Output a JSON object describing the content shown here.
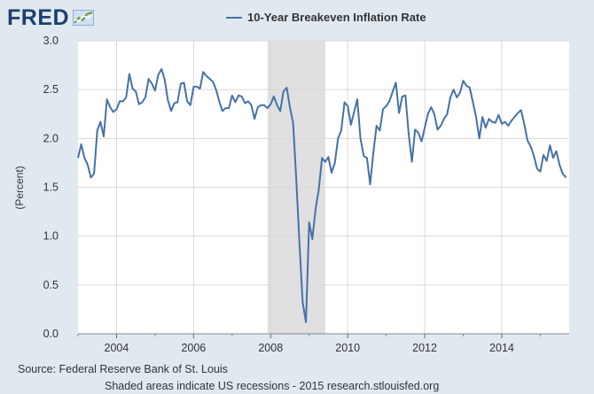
{
  "brand": {
    "name": "FRED"
  },
  "footer": {
    "source": "Source: Federal Reserve Bank of St. Louis",
    "note": "Shaded areas indicate US recessions - 2015 research.stlouisfed.org"
  },
  "colors": {
    "line": "#4572a7",
    "recession": "#e0e0e0",
    "grid": "#d8d8d8",
    "background": "#e1e9f0",
    "plot": "#ffffff"
  },
  "chart_data": {
    "type": "line",
    "title": "",
    "xlabel": "",
    "ylabel": "(Percent)",
    "xlim": [
      2003.0,
      2015.75
    ],
    "ylim": [
      0.0,
      3.0
    ],
    "yticks": [
      "0.0",
      "0.5",
      "1.0",
      "1.5",
      "2.0",
      "2.5",
      "3.0"
    ],
    "xticks": [
      "2004",
      "2006",
      "2008",
      "2010",
      "2012",
      "2014"
    ],
    "grid": true,
    "recessions": [
      [
        2007.92,
        2009.42
      ]
    ],
    "series": [
      {
        "name": "10-Year Breakeven Inflation Rate",
        "x": [
          2003.0,
          2003.083,
          2003.167,
          2003.25,
          2003.333,
          2003.417,
          2003.5,
          2003.583,
          2003.667,
          2003.75,
          2003.833,
          2003.917,
          2004.0,
          2004.083,
          2004.167,
          2004.25,
          2004.333,
          2004.417,
          2004.5,
          2004.583,
          2004.667,
          2004.75,
          2004.833,
          2004.917,
          2005.0,
          2005.083,
          2005.167,
          2005.25,
          2005.333,
          2005.417,
          2005.5,
          2005.583,
          2005.667,
          2005.75,
          2005.833,
          2005.917,
          2006.0,
          2006.083,
          2006.167,
          2006.25,
          2006.333,
          2006.417,
          2006.5,
          2006.583,
          2006.667,
          2006.75,
          2006.833,
          2006.917,
          2007.0,
          2007.083,
          2007.167,
          2007.25,
          2007.333,
          2007.417,
          2007.5,
          2007.583,
          2007.667,
          2007.75,
          2007.833,
          2007.917,
          2008.0,
          2008.083,
          2008.167,
          2008.25,
          2008.333,
          2008.417,
          2008.5,
          2008.583,
          2008.667,
          2008.75,
          2008.833,
          2008.917,
          2009.0,
          2009.083,
          2009.167,
          2009.25,
          2009.333,
          2009.417,
          2009.5,
          2009.583,
          2009.667,
          2009.75,
          2009.833,
          2009.917,
          2010.0,
          2010.083,
          2010.167,
          2010.25,
          2010.333,
          2010.417,
          2010.5,
          2010.583,
          2010.667,
          2010.75,
          2010.833,
          2010.917,
          2011.0,
          2011.083,
          2011.167,
          2011.25,
          2011.333,
          2011.417,
          2011.5,
          2011.583,
          2011.667,
          2011.75,
          2011.833,
          2011.917,
          2012.0,
          2012.083,
          2012.167,
          2012.25,
          2012.333,
          2012.417,
          2012.5,
          2012.583,
          2012.667,
          2012.75,
          2012.833,
          2012.917,
          2013.0,
          2013.083,
          2013.167,
          2013.25,
          2013.333,
          2013.417,
          2013.5,
          2013.583,
          2013.667,
          2013.75,
          2013.833,
          2013.917,
          2014.0,
          2014.083,
          2014.167,
          2014.25,
          2014.333,
          2014.417,
          2014.5,
          2014.583,
          2014.667,
          2014.75,
          2014.833,
          2014.917,
          2015.0,
          2015.083,
          2015.167,
          2015.25,
          2015.333,
          2015.417,
          2015.5,
          2015.583,
          2015.667
        ],
        "values": [
          1.8,
          1.94,
          1.8,
          1.73,
          1.6,
          1.64,
          2.08,
          2.17,
          2.02,
          2.4,
          2.32,
          2.27,
          2.3,
          2.38,
          2.38,
          2.42,
          2.66,
          2.51,
          2.48,
          2.35,
          2.37,
          2.42,
          2.61,
          2.56,
          2.49,
          2.65,
          2.71,
          2.6,
          2.39,
          2.28,
          2.36,
          2.37,
          2.56,
          2.57,
          2.38,
          2.34,
          2.53,
          2.53,
          2.51,
          2.68,
          2.64,
          2.61,
          2.58,
          2.5,
          2.38,
          2.28,
          2.31,
          2.31,
          2.44,
          2.37,
          2.44,
          2.43,
          2.36,
          2.38,
          2.34,
          2.2,
          2.32,
          2.34,
          2.34,
          2.31,
          2.35,
          2.43,
          2.34,
          2.28,
          2.48,
          2.52,
          2.32,
          2.16,
          1.58,
          0.92,
          0.32,
          0.12,
          1.14,
          0.97,
          1.28,
          1.48,
          1.8,
          1.76,
          1.81,
          1.65,
          1.75,
          2.0,
          2.08,
          2.37,
          2.33,
          2.14,
          2.27,
          2.4,
          2.0,
          1.82,
          1.8,
          1.53,
          1.85,
          2.13,
          2.08,
          2.3,
          2.33,
          2.38,
          2.48,
          2.57,
          2.26,
          2.43,
          2.44,
          2.05,
          1.76,
          2.09,
          2.06,
          1.97,
          2.11,
          2.25,
          2.32,
          2.25,
          2.09,
          2.13,
          2.2,
          2.25,
          2.42,
          2.5,
          2.42,
          2.47,
          2.59,
          2.54,
          2.52,
          2.37,
          2.22,
          2.0,
          2.22,
          2.11,
          2.2,
          2.17,
          2.16,
          2.24,
          2.15,
          2.17,
          2.13,
          2.18,
          2.22,
          2.26,
          2.29,
          2.15,
          1.98,
          1.92,
          1.82,
          1.69,
          1.66,
          1.83,
          1.77,
          1.93,
          1.8,
          1.87,
          1.73,
          1.64,
          1.6
        ]
      }
    ]
  }
}
